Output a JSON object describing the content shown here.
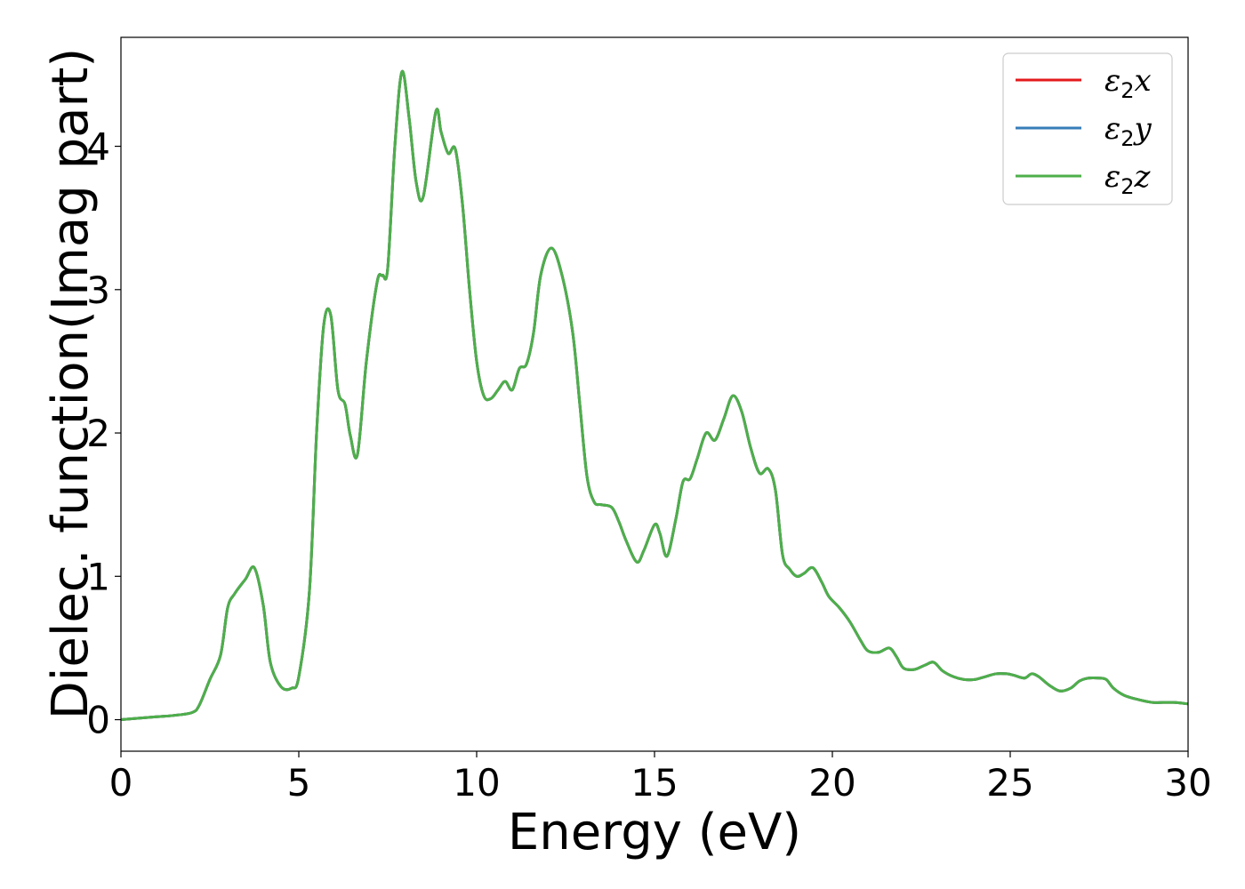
{
  "chart_data": {
    "type": "line",
    "xlabel": "Energy (eV)",
    "ylabel": "Dielec. function(Imag part)",
    "xlim": [
      0,
      30
    ],
    "ylim": [
      -0.22,
      4.76
    ],
    "xticks": [
      0,
      5,
      10,
      15,
      20,
      25,
      30
    ],
    "xtick_labels": [
      "0",
      "5",
      "10",
      "15",
      "20",
      "25",
      "30"
    ],
    "yticks": [
      0,
      1,
      2,
      3,
      4
    ],
    "ytick_labels": [
      "0",
      "1",
      "2",
      "3",
      "4"
    ],
    "grid": false,
    "legend_position": "top-right",
    "x": [
      0,
      1,
      1.5,
      2,
      2.2,
      2.5,
      2.8,
      3.0,
      3.2,
      3.5,
      3.75,
      4.0,
      4.2,
      4.5,
      4.8,
      5.0,
      5.3,
      5.5,
      5.7,
      5.9,
      6.1,
      6.3,
      6.45,
      6.65,
      6.9,
      7.2,
      7.35,
      7.5,
      7.7,
      7.9,
      8.1,
      8.3,
      8.5,
      8.85,
      9.0,
      9.2,
      9.4,
      9.6,
      9.8,
      10.0,
      10.2,
      10.4,
      10.6,
      10.8,
      11.0,
      11.2,
      11.4,
      11.6,
      11.8,
      12.1,
      12.4,
      12.7,
      12.9,
      13.1,
      13.3,
      13.5,
      13.8,
      14.0,
      14.2,
      14.5,
      14.7,
      15.0,
      15.15,
      15.35,
      15.6,
      15.8,
      16.0,
      16.2,
      16.45,
      16.7,
      16.95,
      17.2,
      17.45,
      17.7,
      17.95,
      18.2,
      18.4,
      18.6,
      18.8,
      19.0,
      19.2,
      19.45,
      19.7,
      19.9,
      20.2,
      20.5,
      20.8,
      21.0,
      21.3,
      21.6,
      21.8,
      22.0,
      22.3,
      22.6,
      22.85,
      23.1,
      23.4,
      23.7,
      24.0,
      24.3,
      24.6,
      24.9,
      25.1,
      25.4,
      25.6,
      25.8,
      26.1,
      26.4,
      26.7,
      26.95,
      27.2,
      27.5,
      27.7,
      27.9,
      28.2,
      28.6,
      29.0,
      29.3,
      29.6,
      30.0
    ],
    "series": [
      {
        "name": "ε₂x",
        "legend_main": "ε",
        "legend_sub": "2",
        "legend_suffix": "x",
        "color": "#e41a1c",
        "values": [
          0.0,
          0.02,
          0.03,
          0.05,
          0.1,
          0.28,
          0.45,
          0.78,
          0.88,
          0.98,
          1.06,
          0.8,
          0.4,
          0.23,
          0.22,
          0.3,
          0.9,
          2.0,
          2.75,
          2.82,
          2.3,
          2.2,
          1.98,
          1.85,
          2.5,
          3.05,
          3.1,
          3.15,
          4.0,
          4.52,
          4.2,
          3.75,
          3.65,
          4.24,
          4.1,
          3.95,
          3.98,
          3.6,
          3.0,
          2.5,
          2.26,
          2.24,
          2.3,
          2.36,
          2.3,
          2.45,
          2.48,
          2.7,
          3.1,
          3.29,
          3.1,
          2.7,
          2.2,
          1.7,
          1.52,
          1.5,
          1.48,
          1.38,
          1.25,
          1.1,
          1.18,
          1.36,
          1.3,
          1.14,
          1.4,
          1.66,
          1.68,
          1.82,
          2.0,
          1.95,
          2.1,
          2.26,
          2.15,
          1.9,
          1.72,
          1.75,
          1.6,
          1.15,
          1.05,
          1.0,
          1.02,
          1.06,
          0.96,
          0.86,
          0.78,
          0.68,
          0.55,
          0.48,
          0.47,
          0.5,
          0.44,
          0.36,
          0.35,
          0.38,
          0.4,
          0.34,
          0.3,
          0.28,
          0.28,
          0.3,
          0.32,
          0.32,
          0.31,
          0.29,
          0.32,
          0.3,
          0.24,
          0.2,
          0.22,
          0.27,
          0.29,
          0.29,
          0.28,
          0.22,
          0.17,
          0.14,
          0.12,
          0.12,
          0.12,
          0.11
        ]
      },
      {
        "name": "ε₂y",
        "legend_main": "ε",
        "legend_sub": "2",
        "legend_suffix": "y",
        "color": "#377eb8",
        "values": [
          0.0,
          0.02,
          0.03,
          0.05,
          0.1,
          0.28,
          0.45,
          0.78,
          0.88,
          0.98,
          1.06,
          0.8,
          0.4,
          0.23,
          0.22,
          0.3,
          0.9,
          2.0,
          2.75,
          2.82,
          2.3,
          2.2,
          1.98,
          1.85,
          2.5,
          3.05,
          3.1,
          3.15,
          4.0,
          4.52,
          4.2,
          3.75,
          3.65,
          4.24,
          4.1,
          3.95,
          3.98,
          3.6,
          3.0,
          2.5,
          2.26,
          2.24,
          2.3,
          2.36,
          2.3,
          2.45,
          2.48,
          2.7,
          3.1,
          3.29,
          3.1,
          2.7,
          2.2,
          1.7,
          1.52,
          1.5,
          1.48,
          1.38,
          1.25,
          1.1,
          1.18,
          1.36,
          1.3,
          1.14,
          1.4,
          1.66,
          1.68,
          1.82,
          2.0,
          1.95,
          2.1,
          2.26,
          2.15,
          1.9,
          1.72,
          1.75,
          1.6,
          1.15,
          1.05,
          1.0,
          1.02,
          1.06,
          0.96,
          0.86,
          0.78,
          0.68,
          0.55,
          0.48,
          0.47,
          0.5,
          0.44,
          0.36,
          0.35,
          0.38,
          0.4,
          0.34,
          0.3,
          0.28,
          0.28,
          0.3,
          0.32,
          0.32,
          0.31,
          0.29,
          0.32,
          0.3,
          0.24,
          0.2,
          0.22,
          0.27,
          0.29,
          0.29,
          0.28,
          0.22,
          0.17,
          0.14,
          0.12,
          0.12,
          0.12,
          0.11
        ]
      },
      {
        "name": "ε₂z",
        "legend_main": "ε",
        "legend_sub": "2",
        "legend_suffix": "z",
        "color": "#4daf4a",
        "values": [
          0.0,
          0.02,
          0.03,
          0.05,
          0.1,
          0.28,
          0.45,
          0.78,
          0.88,
          0.98,
          1.06,
          0.8,
          0.4,
          0.23,
          0.22,
          0.3,
          0.9,
          2.0,
          2.75,
          2.82,
          2.3,
          2.2,
          1.98,
          1.85,
          2.5,
          3.05,
          3.1,
          3.15,
          4.0,
          4.52,
          4.2,
          3.75,
          3.65,
          4.24,
          4.1,
          3.95,
          3.98,
          3.6,
          3.0,
          2.5,
          2.26,
          2.24,
          2.3,
          2.36,
          2.3,
          2.45,
          2.48,
          2.7,
          3.1,
          3.29,
          3.1,
          2.7,
          2.2,
          1.7,
          1.52,
          1.5,
          1.48,
          1.38,
          1.25,
          1.1,
          1.18,
          1.36,
          1.3,
          1.14,
          1.4,
          1.66,
          1.68,
          1.82,
          2.0,
          1.95,
          2.1,
          2.26,
          2.15,
          1.9,
          1.72,
          1.75,
          1.6,
          1.15,
          1.05,
          1.0,
          1.02,
          1.06,
          0.96,
          0.86,
          0.78,
          0.68,
          0.55,
          0.48,
          0.47,
          0.5,
          0.44,
          0.36,
          0.35,
          0.38,
          0.4,
          0.34,
          0.3,
          0.28,
          0.28,
          0.3,
          0.32,
          0.32,
          0.31,
          0.29,
          0.32,
          0.3,
          0.24,
          0.2,
          0.22,
          0.27,
          0.29,
          0.29,
          0.28,
          0.22,
          0.17,
          0.14,
          0.12,
          0.12,
          0.12,
          0.11
        ]
      }
    ]
  }
}
